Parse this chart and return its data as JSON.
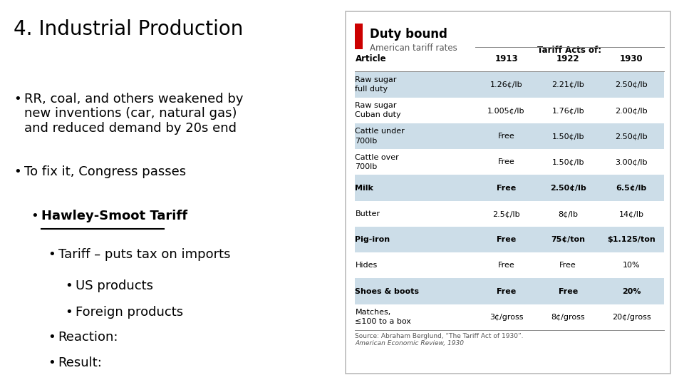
{
  "title": "4. Industrial Production",
  "bg_color": "#ffffff",
  "left_bullets": [
    {
      "level": 0,
      "text": "RR, coal, and others weakened by\nnew inventions (car, natural gas)\nand reduced demand by 20s end",
      "bold": false,
      "underline": false
    },
    {
      "level": 0,
      "text": "To fix it, Congress passes",
      "bold": false,
      "underline": false
    },
    {
      "level": 1,
      "text": "Hawley-Smoot Tariff",
      "bold": true,
      "underline": true
    },
    {
      "level": 2,
      "text": "Tariff – puts tax on imports",
      "bold": false,
      "underline": false
    },
    {
      "level": 3,
      "text": "US products",
      "bold": false,
      "underline": false
    },
    {
      "level": 3,
      "text": "Foreign products",
      "bold": false,
      "underline": false
    },
    {
      "level": 2,
      "text": "Reaction:",
      "bold": false,
      "underline": false
    },
    {
      "level": 2,
      "text": "Result:",
      "bold": false,
      "underline": false
    }
  ],
  "table_title": "Duty bound",
  "table_subtitle": "American tariff rates",
  "table_header_label": "Tariff Acts of:",
  "table_col_headers": [
    "Article",
    "1913",
    "1922",
    "1930"
  ],
  "table_rows": [
    [
      "Raw sugar\nfull duty",
      "1.26¢/lb",
      "2.21¢/lb",
      "2.50¢/lb"
    ],
    [
      "Raw sugar\nCuban duty",
      "1.005¢/lb",
      "1.76¢/lb",
      "2.00¢/lb"
    ],
    [
      "Cattle under\n700lb",
      "Free",
      "1.50¢/lb",
      "2.50¢/lb"
    ],
    [
      "Cattle over\n700lb",
      "Free",
      "1.50¢/lb",
      "3.00¢/lb"
    ],
    [
      "Milk",
      "Free",
      "2.50¢/lb",
      "6.5¢/lb"
    ],
    [
      "Butter",
      "2.5¢/lb",
      "8¢/lb",
      "14¢/lb"
    ],
    [
      "Pig-iron",
      "Free",
      "75¢/ton",
      "$1.125/ton"
    ],
    [
      "Hides",
      "Free",
      "Free",
      "10%"
    ],
    [
      "Shoes & boots",
      "Free",
      "Free",
      "20%"
    ],
    [
      "Matches,\n≤100 to a box",
      "3¢/gross",
      "8¢/gross",
      "20¢/gross"
    ]
  ],
  "table_bold_rows": [
    4,
    6,
    8
  ],
  "table_shaded_rows": [
    0,
    2,
    4,
    6,
    8
  ],
  "table_source": "Source: Abraham Berglund, “The Tariff Act of 1930”.\nAmerican Economic Review, 1930",
  "red_bar_color": "#cc0000",
  "shaded_row_color": "#ccdde8",
  "table_bg_color": "#ffffff",
  "border_color": "#aaaaaa",
  "header_line_color": "#888888"
}
